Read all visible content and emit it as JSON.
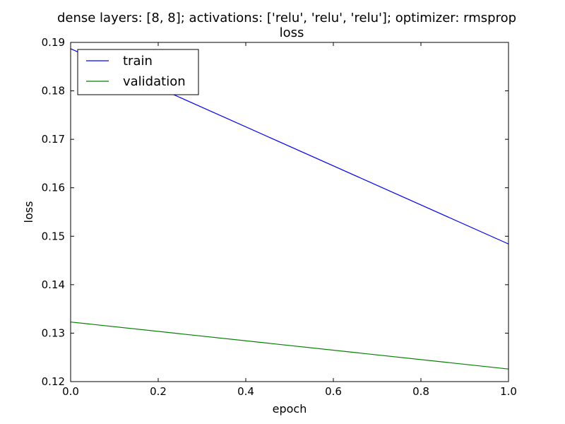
{
  "chart_data": {
    "type": "line",
    "title": "dense layers: [8, 8]; activations: ['relu', 'relu', 'relu']; optimizer: rmsprop",
    "subtitle": "loss",
    "xlabel": "epoch",
    "ylabel": "loss",
    "xlim": [
      0.0,
      1.0
    ],
    "ylim": [
      0.12,
      0.19
    ],
    "x_ticks": [
      0.0,
      0.2,
      0.4,
      0.6,
      0.8,
      1.0
    ],
    "x_tick_labels": [
      "0.0",
      "0.2",
      "0.4",
      "0.6",
      "0.8",
      "1.0"
    ],
    "y_ticks": [
      0.12,
      0.13,
      0.14,
      0.15,
      0.16,
      0.17,
      0.18,
      0.19
    ],
    "y_tick_labels": [
      "0.12",
      "0.13",
      "0.14",
      "0.15",
      "0.16",
      "0.17",
      "0.18",
      "0.19"
    ],
    "grid": false,
    "legend_position": "top-left",
    "x": [
      0,
      1
    ],
    "series": [
      {
        "name": "train",
        "values": [
          0.1887,
          0.1484
        ],
        "color": "#0000ff"
      },
      {
        "name": "validation",
        "values": [
          0.1323,
          0.1226
        ],
        "color": "#008000"
      }
    ]
  }
}
